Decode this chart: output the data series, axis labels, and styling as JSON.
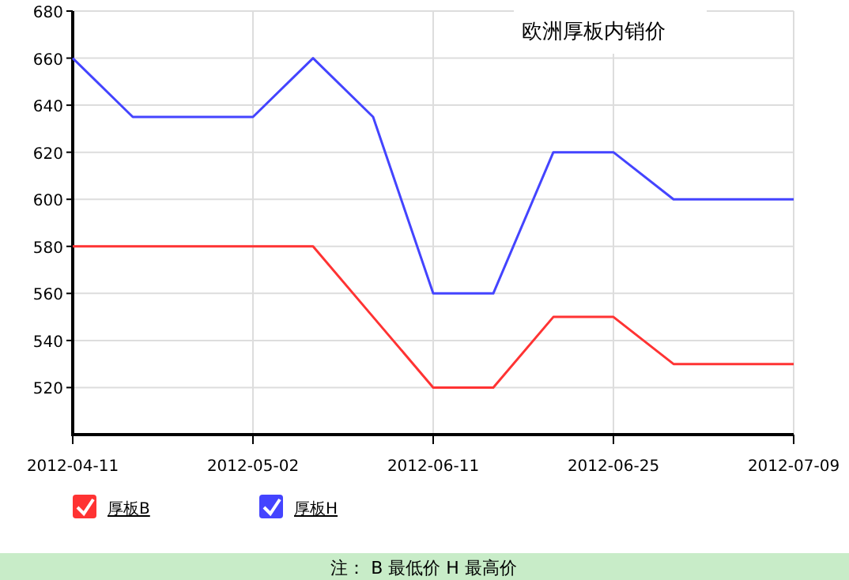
{
  "chart_data": {
    "type": "line",
    "title": "欧洲厚板内销价",
    "categories": [
      "2012-04-11",
      null,
      null,
      "2012-05-02",
      null,
      null,
      "2012-06-11",
      null,
      null,
      "2012-06-25",
      null,
      null,
      "2012-07-09"
    ],
    "series": [
      {
        "name": "厚板B",
        "color": "#ff3333",
        "values": [
          580,
          580,
          580,
          580,
          580,
          550,
          520,
          520,
          550,
          550,
          530,
          530,
          530
        ]
      },
      {
        "name": "厚板H",
        "color": "#4444ff",
        "values": [
          660,
          635,
          635,
          635,
          660,
          635,
          560,
          560,
          620,
          620,
          600,
          600,
          600
        ]
      }
    ],
    "ylim": [
      500,
      680
    ],
    "yticks": [
      520,
      540,
      560,
      580,
      600,
      620,
      640,
      660,
      680
    ],
    "grid": true,
    "legend": "bottom left",
    "marker": "none",
    "line_style": "solid",
    "annotations": [
      "注： B 最低价 H 最高价"
    ]
  }
}
